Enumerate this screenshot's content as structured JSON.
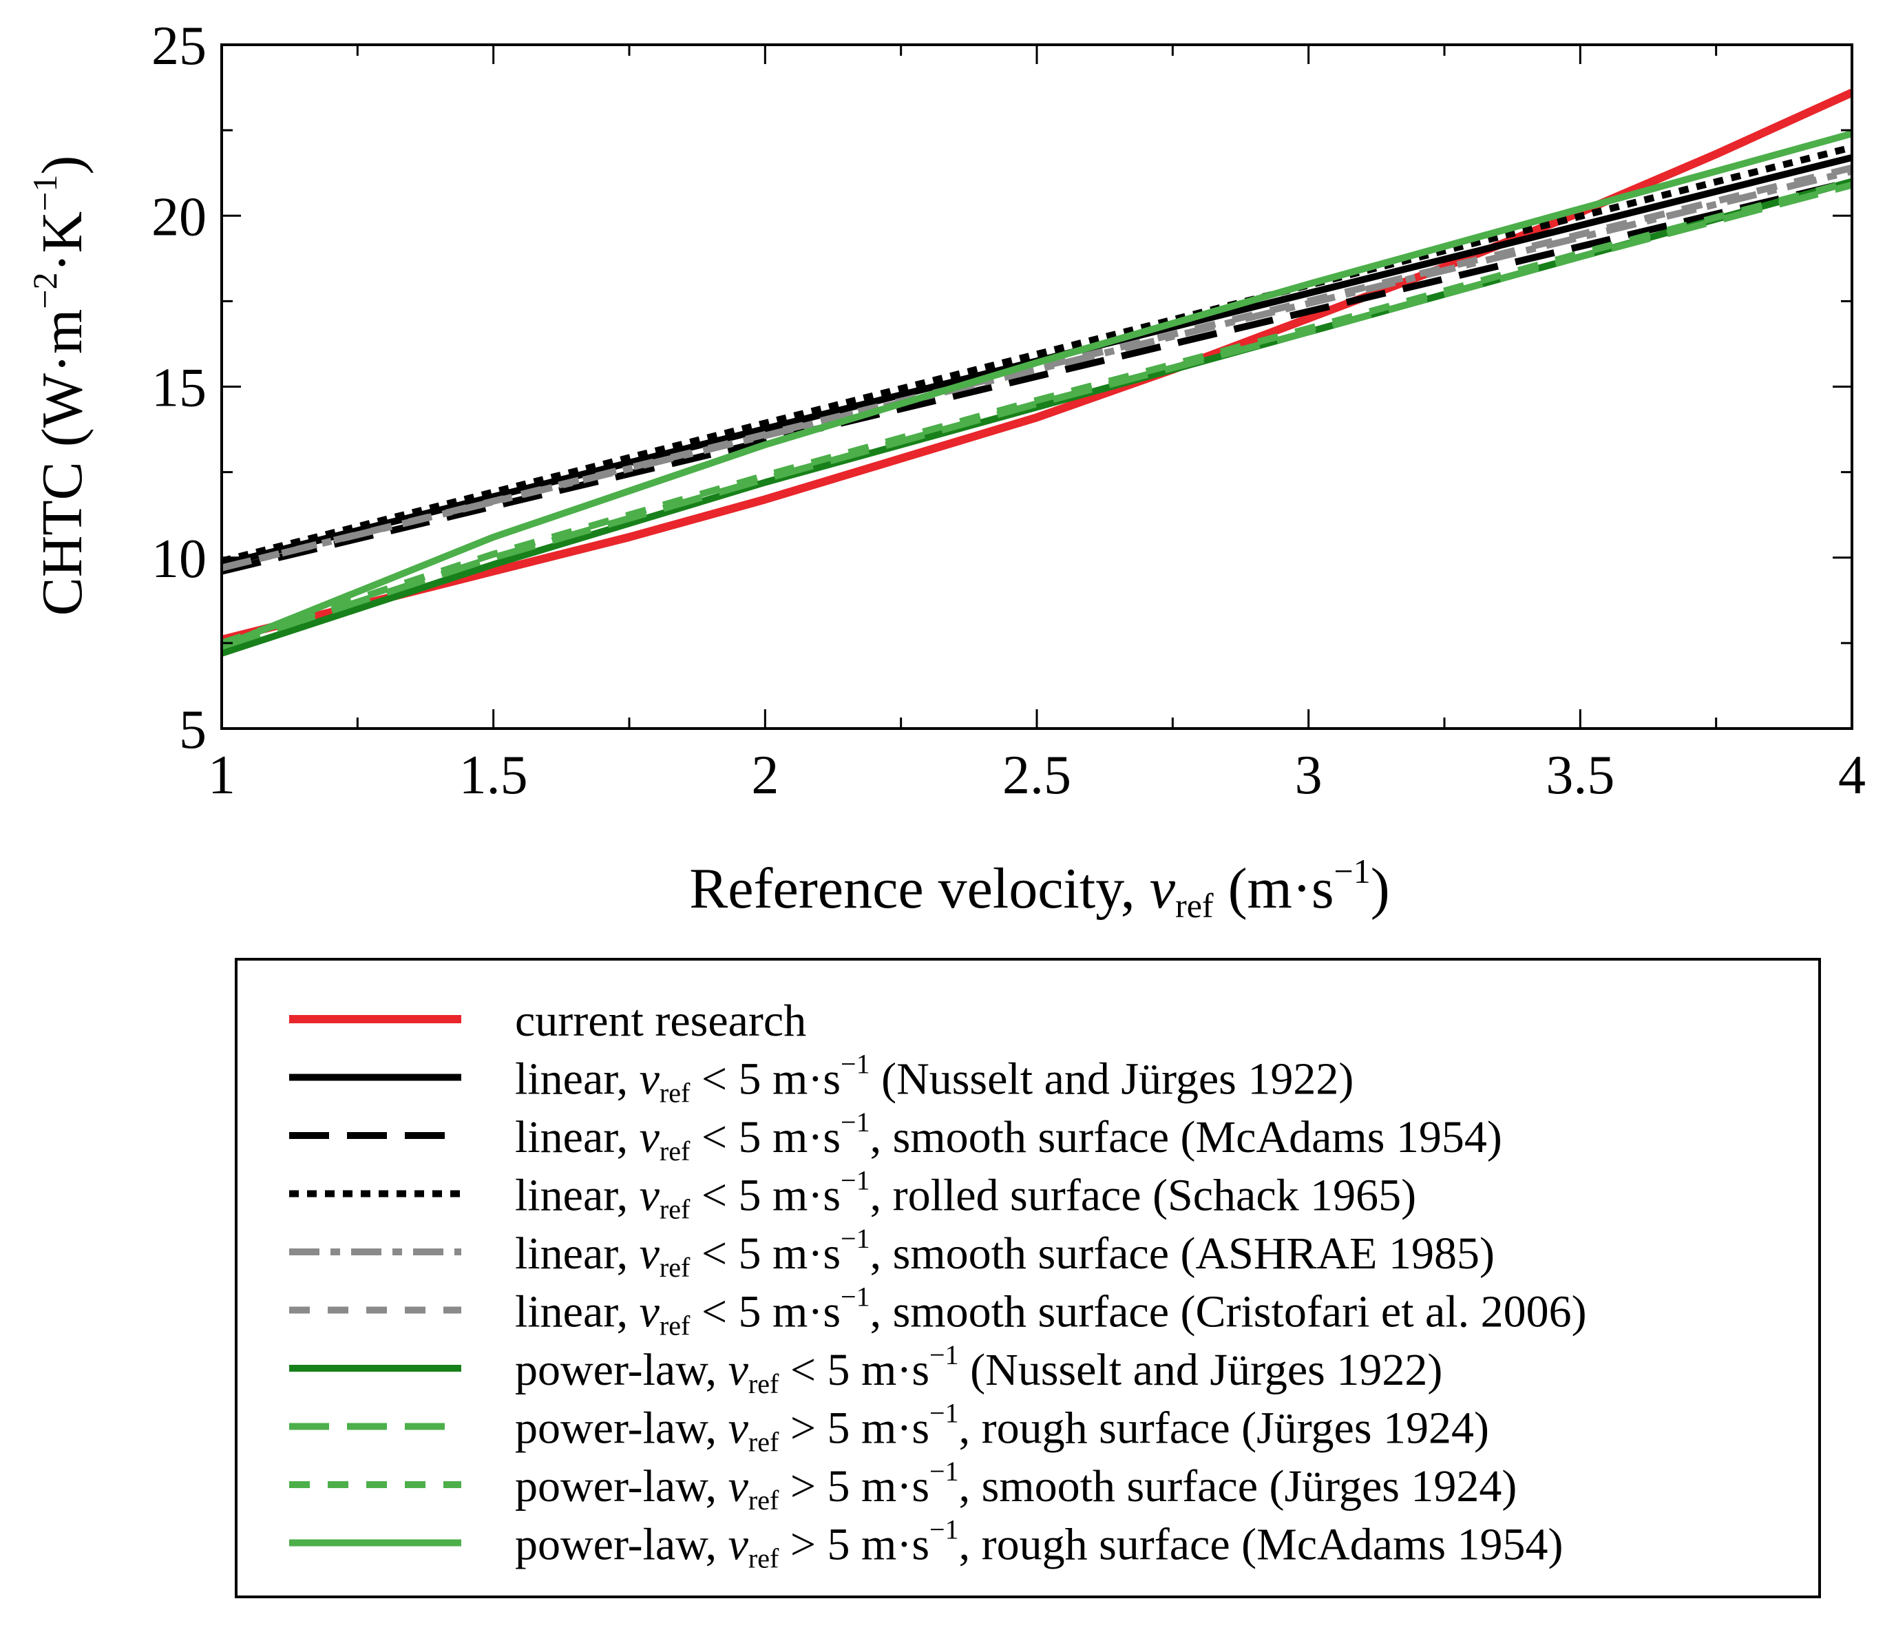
{
  "chart_data": {
    "type": "line",
    "xlabel": {
      "main": "Reference velocity, ",
      "var": "v",
      "sub": "ref",
      "unit_open": " (m·s",
      "unit_sup": "−1",
      "unit_close": ")"
    },
    "ylabel": {
      "main": "CHTC (W·m",
      "sup1": "−2",
      "mid": "·K",
      "sup2": "−1",
      "close": ")"
    },
    "xlim": [
      1,
      4
    ],
    "ylim": [
      5,
      25
    ],
    "xticks": [
      1,
      1.5,
      2,
      2.5,
      3,
      3.5,
      4
    ],
    "xtick_labels": [
      "1",
      "1.5",
      "2",
      "2.5",
      "3",
      "3.5",
      "4"
    ],
    "yticks": [
      5,
      10,
      15,
      20,
      25
    ],
    "ytick_labels": [
      "5",
      "10",
      "15",
      "20",
      "25"
    ],
    "grid": false,
    "legend_placement": "below",
    "series": [
      {
        "name": "current research",
        "color": "#e8262b",
        "dash": "solid",
        "points": [
          [
            1,
            7.6
          ],
          [
            1.25,
            8.6
          ],
          [
            1.5,
            9.6
          ],
          [
            1.75,
            10.6
          ],
          [
            2,
            11.7
          ],
          [
            2.25,
            12.9
          ],
          [
            2.5,
            14.1
          ],
          [
            2.75,
            15.5
          ],
          [
            3,
            17.0
          ],
          [
            3.25,
            18.5
          ],
          [
            3.5,
            20.1
          ],
          [
            3.75,
            21.8
          ],
          [
            4,
            23.6
          ]
        ]
      },
      {
        "name": "linear, v_ref < 5 m·s⁻¹ (Nusselt and Jürges 1922)",
        "color": "#000000",
        "dash": "solid",
        "points": [
          [
            1,
            9.8
          ],
          [
            4,
            21.7
          ]
        ]
      },
      {
        "name": "linear, v_ref < 5 m·s⁻¹, smooth surface  (McAdams 1954)",
        "color": "#000000",
        "dash": "longdash",
        "points": [
          [
            1,
            9.6
          ],
          [
            4,
            21.0
          ]
        ]
      },
      {
        "name": "linear, v_ref < 5 m·s⁻¹, rolled surface  (Schack 1965)",
        "color": "#000000",
        "dash": "dot",
        "points": [
          [
            1,
            9.9
          ],
          [
            4,
            22.0
          ]
        ]
      },
      {
        "name": "linear, v_ref < 5 m·s⁻¹, smooth surface  (ASHRAE 1985)",
        "color": "#8a8a8a",
        "dash": "dashdot",
        "points": [
          [
            1,
            9.7
          ],
          [
            4,
            21.3
          ]
        ]
      },
      {
        "name": "linear, v_ref < 5 m·s⁻¹, smooth surface  (Cristofari et al. 2006)",
        "color": "#8a8a8a",
        "dash": "dash",
        "points": [
          [
            1,
            9.7
          ],
          [
            4,
            21.4
          ]
        ]
      },
      {
        "name": "power-law, v_ref < 5 m·s⁻¹ (Nusselt and Jürges 1922)",
        "color": "#18801a",
        "dash": "solid",
        "points": [
          [
            1,
            7.2
          ],
          [
            1.5,
            9.8
          ],
          [
            2,
            12.2
          ],
          [
            2.5,
            14.4
          ],
          [
            3,
            16.6
          ],
          [
            3.5,
            18.8
          ],
          [
            4,
            21.0
          ]
        ]
      },
      {
        "name": "power-law, v_ref > 5 m·s⁻¹, rough surface (Jürges 1924)",
        "color": "#4caf4a",
        "dash": "longdash",
        "points": [
          [
            1,
            7.4
          ],
          [
            1.5,
            10.0
          ],
          [
            2,
            12.3
          ],
          [
            2.5,
            14.5
          ],
          [
            3,
            16.6
          ],
          [
            3.5,
            18.8
          ],
          [
            4,
            20.9
          ]
        ]
      },
      {
        "name": "power-law, v_ref > 5 m·s⁻¹, smooth surface (Jürges 1924)",
        "color": "#4caf4a",
        "dash": "dash",
        "points": [
          [
            1,
            7.5
          ],
          [
            1.5,
            10.1
          ],
          [
            2,
            12.4
          ],
          [
            2.5,
            14.6
          ],
          [
            3,
            16.7
          ],
          [
            3.5,
            18.9
          ],
          [
            4,
            21.0
          ]
        ]
      },
      {
        "name": "power-law, v_ref > 5 m·s⁻¹, rough surface  (McAdams 1954)",
        "color": "#4caf4a",
        "dash": "solid",
        "points": [
          [
            1,
            7.4
          ],
          [
            1.5,
            10.6
          ],
          [
            2,
            13.3
          ],
          [
            2.5,
            15.7
          ],
          [
            3,
            18.0
          ],
          [
            3.5,
            20.2
          ],
          [
            4,
            22.4
          ]
        ]
      }
    ]
  },
  "legend": [
    {
      "color": "#e8262b",
      "dash": "solid",
      "pre": "current research",
      "var": "",
      "sub": "",
      "rel": "",
      "sup": "",
      "post": ""
    },
    {
      "color": "#000000",
      "dash": "solid",
      "pre": "linear, ",
      "var": "v",
      "sub": "ref",
      "rel": " < 5 m·s",
      "sup": "−1",
      "post": " (Nusselt and Jürges 1922)"
    },
    {
      "color": "#000000",
      "dash": "longdash",
      "pre": "linear, ",
      "var": "v",
      "sub": "ref",
      "rel": " < 5 m·s",
      "sup": "−1",
      "post": ", smooth surface  (McAdams 1954)"
    },
    {
      "color": "#000000",
      "dash": "dot",
      "pre": "linear, ",
      "var": "v",
      "sub": "ref",
      "rel": " < 5 m·s",
      "sup": "−1",
      "post": ", rolled surface  (Schack 1965)"
    },
    {
      "color": "#8a8a8a",
      "dash": "dashdot",
      "pre": "linear, ",
      "var": "v",
      "sub": "ref",
      "rel": " < 5 m·s",
      "sup": "−1",
      "post": ", smooth surface  (ASHRAE 1985)"
    },
    {
      "color": "#8a8a8a",
      "dash": "dash",
      "pre": "linear, ",
      "var": "v",
      "sub": "ref",
      "rel": " < 5 m·s",
      "sup": "−1",
      "post": ", smooth surface  (Cristofari et al. 2006)"
    },
    {
      "color": "#18801a",
      "dash": "solid",
      "pre": "power-law, ",
      "var": "v",
      "sub": "ref",
      "rel": " < 5 m·s",
      "sup": "−1",
      "post": " (Nusselt and Jürges 1922)"
    },
    {
      "color": "#4caf4a",
      "dash": "longdash",
      "pre": "power-law, ",
      "var": "v",
      "sub": "ref",
      "rel": " > 5 m·s",
      "sup": "−1",
      "post": ", rough surface (Jürges 1924)"
    },
    {
      "color": "#4caf4a",
      "dash": "dash",
      "pre": "power-law, ",
      "var": "v",
      "sub": "ref",
      "rel": " > 5 m·s",
      "sup": "−1",
      "post": ", smooth surface (Jürges 1924)"
    },
    {
      "color": "#4caf4a",
      "dash": "solid",
      "pre": "power-law, ",
      "var": "v",
      "sub": "ref",
      "rel": " > 5 m·s",
      "sup": "−1",
      "post": ", rough surface  (McAdams 1954)"
    }
  ]
}
